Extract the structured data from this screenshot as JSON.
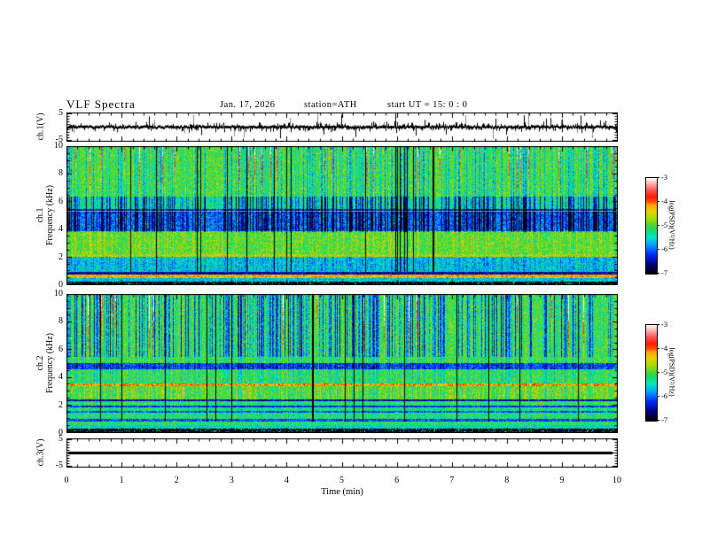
{
  "title": "VLF  Spectra",
  "header": {
    "date": "Jan. 17, 2026",
    "station": "station=ATH",
    "start_ut": "start UT =  15: 0 : 0"
  },
  "panels": {
    "ch1_wave": {
      "ylabel": "ch.1(V)",
      "y_tick_labels": [
        5,
        -5
      ],
      "ylim": [
        -5.5,
        5.5
      ]
    },
    "spec1": {
      "ylabel_line1": "ch.1",
      "ylabel_line2": "Frequency (kHz)",
      "y_tick_labels": [
        10,
        8,
        6,
        4,
        2,
        0
      ],
      "ylim": [
        0,
        10
      ]
    },
    "spec2": {
      "ylabel_line1": "ch.2",
      "ylabel_line2": "Frequency (kHz)",
      "y_tick_labels": [
        10,
        8,
        6,
        4,
        2,
        0
      ],
      "ylim": [
        0,
        10
      ]
    },
    "ch3_wave": {
      "ylabel": "ch.3(V)",
      "y_tick_labels": [
        5,
        -5
      ],
      "ylim": [
        -5.5,
        5.5
      ]
    }
  },
  "xaxis": {
    "label": "Time  (min)",
    "ticks": [
      0,
      1,
      2,
      3,
      4,
      5,
      6,
      7,
      8,
      9,
      10
    ],
    "lim": [
      0,
      10
    ],
    "minor_step": 0.2
  },
  "colorbar": {
    "label": "log(PSD)(V²/Hz)",
    "ticks": [
      -3,
      -4,
      -5,
      -6,
      -7
    ],
    "lim": [
      -7,
      -3
    ],
    "stops": [
      [
        0.0,
        "#000000"
      ],
      [
        0.1,
        "#000080"
      ],
      [
        0.2,
        "#0028ff"
      ],
      [
        0.3,
        "#00a0ff"
      ],
      [
        0.38,
        "#00e6c8"
      ],
      [
        0.45,
        "#14dc64"
      ],
      [
        0.5,
        "#46d23c"
      ],
      [
        0.57,
        "#a0dc00"
      ],
      [
        0.65,
        "#e6d200"
      ],
      [
        0.72,
        "#ffa000"
      ],
      [
        0.75,
        "#ff5000"
      ],
      [
        0.8,
        "#ff1e00"
      ],
      [
        0.87,
        "#ff5050"
      ],
      [
        0.93,
        "#ffa0a0"
      ],
      [
        1.0,
        "#ffffff"
      ]
    ]
  },
  "chart_data": [
    {
      "type": "line",
      "name": "ch.1 voltage waveform",
      "ylabel": "ch.1(V)",
      "ylim": [
        -5.5,
        5.5
      ],
      "xlim": [
        0,
        10
      ],
      "description": "Noisy trace centered at 0 V, ~±0.5 V band, dense impulsive spikes reaching ±5 V across all 10 minutes",
      "baseline": 0,
      "band_halfwidth_v": 0.45,
      "small_spike_prob": 0.4,
      "small_spike_amp": [
        0.5,
        1.9
      ],
      "large_spike_prob": 0.07,
      "large_spike_amp": [
        2.0,
        5.3
      ],
      "seed": 7
    },
    {
      "type": "heatmap",
      "name": "ch.1 spectrogram",
      "ylabel": "ch.1 Frequency (kHz)",
      "ylim": [
        0,
        10
      ],
      "xlim": [
        0,
        10
      ],
      "zlabel": "log(PSD)(V²/Hz)",
      "zlim": [
        -7,
        -3
      ],
      "description": "Green 6-10 kHz background with yellow patches and red sferic streaks; blue depressed band 4-5.3 kHz with dark-blue vertical streaks; bright green-yellow 2.3-3.9 kHz; yellow line ~2.15 kHz; cyan 1-2 kHz; orange band ~0.5-0.8 kHz; black band below 0.3 kHz",
      "bands": [
        [
          0,
          0.28,
          -7.05
        ],
        [
          0.28,
          0.5,
          -5.6
        ],
        [
          0.5,
          0.78,
          -4.3
        ],
        [
          0.78,
          0.95,
          -6.5
        ],
        [
          0.95,
          2.05,
          -5.55
        ],
        [
          2.05,
          2.25,
          -4.55
        ],
        [
          2.25,
          3.9,
          -4.95
        ],
        [
          3.9,
          5.22,
          -5.95
        ],
        [
          5.22,
          5.45,
          -6.2
        ],
        [
          5.45,
          6.4,
          -5.3
        ],
        [
          6.4,
          10,
          -5.0
        ]
      ],
      "hlines": [
        [
          5.32,
          0.06,
          -4.6
        ]
      ],
      "streaks": {
        "darkProb": 0.55,
        "darkMax": 1.7,
        "darkWeights": [
          [
            3.8,
            6.4,
            1.0
          ],
          [
            6.4,
            10,
            0.5
          ],
          [
            2.3,
            3.8,
            0.1
          ],
          [
            1.0,
            2.3,
            0.25
          ]
        ],
        "brightProb": 0.35,
        "brightMax": 0.5,
        "brightWeights": [
          [
            2.25,
            3.9,
            1.0
          ],
          [
            6.4,
            10,
            0.35
          ]
        ],
        "redProb": 0.05,
        "redF": 6.3,
        "blackProb": 0.025,
        "blackF": 0.95
      },
      "specks": {
        "belowF": 0.4,
        "prob": 0.15,
        "level": -5.3
      },
      "noise": 0.42,
      "seed": 11
    },
    {
      "type": "heatmap",
      "name": "ch.2 spectrogram",
      "ylabel": "ch.2 Frequency (kHz)",
      "ylim": [
        0,
        10
      ],
      "xlim": [
        0,
        10
      ],
      "zlabel": "log(PSD)(V²/Hz)",
      "zlim": [
        -7,
        -3
      ],
      "description": "Green 5-10 kHz with blue/cyan vertical streaks and thin black lines; dark speckled band 4.6-5 kHz; prominent red-orange line ~3.5 kHz; bright green 2.5-3.3 kHz; alternating green and dark horizontal bands below 2.3 kHz; black band below 0.3 kHz",
      "bands": [
        [
          0,
          0.3,
          -7.05
        ],
        [
          0.3,
          0.55,
          -5.45
        ],
        [
          0.55,
          0.8,
          -5.2
        ],
        [
          0.8,
          1.0,
          -6.1
        ],
        [
          1.0,
          1.45,
          -5.15
        ],
        [
          1.45,
          1.6,
          -5.95
        ],
        [
          1.6,
          1.85,
          -5.2
        ],
        [
          1.85,
          2.0,
          -6.15
        ],
        [
          2.0,
          2.3,
          -5.1
        ],
        [
          2.3,
          2.45,
          -6.35
        ],
        [
          2.45,
          3.35,
          -4.9
        ],
        [
          3.35,
          3.58,
          -4.05
        ],
        [
          3.58,
          4.6,
          -5.05
        ],
        [
          4.6,
          5.05,
          -6.05
        ],
        [
          5.05,
          10,
          -5.05
        ]
      ],
      "hlines": [],
      "streaks": {
        "darkProb": 0.5,
        "darkMax": 1.5,
        "darkWeights": [
          [
            5.5,
            10,
            1.0
          ],
          [
            2.45,
            5.5,
            0.35
          ],
          [
            1.0,
            2.45,
            0.2
          ]
        ],
        "brightProb": 0.3,
        "brightMax": 0.45,
        "brightWeights": [
          [
            2.45,
            3.35,
            1.0
          ],
          [
            5.05,
            10,
            0.4
          ]
        ],
        "redProb": 0.03,
        "redF": 5.0,
        "blackProb": 0.03,
        "blackF": 0.8
      },
      "specks": {
        "belowF": 0.4,
        "prob": 0.15,
        "level": -5.3
      },
      "noise": 0.42,
      "seed": 29
    },
    {
      "type": "line",
      "name": "ch.3 voltage waveform",
      "ylabel": "ch.3(V)",
      "ylim": [
        -5.5,
        5.5
      ],
      "xlim": [
        0,
        10
      ],
      "description": "Flat thick black line constant at 0 V (no signal)",
      "constant": 0,
      "line_halfwidth_v": 0.45
    }
  ]
}
